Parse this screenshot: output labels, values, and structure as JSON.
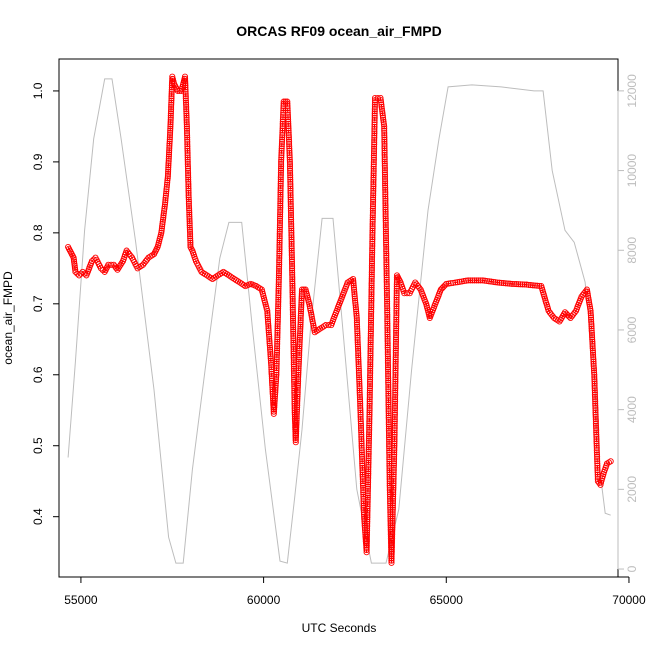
{
  "chart_data": {
    "type": "scatter",
    "title": "ORCAS RF09 ocean_air_FMPD",
    "xlabel": "UTC Seconds",
    "ylabel": "ocean_air_FMPD",
    "xlim": [
      54400,
      69700
    ],
    "ylim": [
      0.315,
      1.045
    ],
    "y2lim": [
      -200,
      12800
    ],
    "x_ticks": [
      55000,
      60000,
      65000,
      70000
    ],
    "y_ticks": [
      0.4,
      0.5,
      0.6,
      0.7,
      0.8,
      0.9,
      1.0
    ],
    "y2_ticks": [
      0,
      2000,
      4000,
      6000,
      8000,
      10000,
      12000
    ],
    "grid": false,
    "legend": "none",
    "series": [
      {
        "role": "primary",
        "color": "#ff0000",
        "marker": "open-circle",
        "points": [
          [
            54650,
            0.78
          ],
          [
            54700,
            0.775
          ],
          [
            54750,
            0.77
          ],
          [
            54800,
            0.765
          ],
          [
            54850,
            0.745
          ],
          [
            54950,
            0.74
          ],
          [
            55050,
            0.745
          ],
          [
            55150,
            0.74
          ],
          [
            55300,
            0.76
          ],
          [
            55400,
            0.765
          ],
          [
            55550,
            0.75
          ],
          [
            55650,
            0.745
          ],
          [
            55750,
            0.755
          ],
          [
            55900,
            0.755
          ],
          [
            56000,
            0.748
          ],
          [
            56150,
            0.76
          ],
          [
            56250,
            0.775
          ],
          [
            56400,
            0.765
          ],
          [
            56550,
            0.75
          ],
          [
            56700,
            0.755
          ],
          [
            56850,
            0.765
          ],
          [
            57000,
            0.77
          ],
          [
            57100,
            0.78
          ],
          [
            57200,
            0.8
          ],
          [
            57300,
            0.84
          ],
          [
            57380,
            0.88
          ],
          [
            57450,
            0.95
          ],
          [
            57500,
            1.02
          ],
          [
            57550,
            1.01
          ],
          [
            57650,
            1.0
          ],
          [
            57750,
            1.0
          ],
          [
            57850,
            1.02
          ],
          [
            57900,
            0.95
          ],
          [
            57950,
            0.85
          ],
          [
            58000,
            0.78
          ],
          [
            58050,
            0.775
          ],
          [
            58150,
            0.76
          ],
          [
            58300,
            0.745
          ],
          [
            58450,
            0.74
          ],
          [
            58600,
            0.735
          ],
          [
            58750,
            0.74
          ],
          [
            58900,
            0.745
          ],
          [
            59050,
            0.74
          ],
          [
            59200,
            0.735
          ],
          [
            59350,
            0.73
          ],
          [
            59500,
            0.725
          ],
          [
            59650,
            0.728
          ],
          [
            59800,
            0.725
          ],
          [
            59950,
            0.72
          ],
          [
            60100,
            0.69
          ],
          [
            60200,
            0.62
          ],
          [
            60280,
            0.545
          ],
          [
            60350,
            0.6
          ],
          [
            60420,
            0.74
          ],
          [
            60480,
            0.9
          ],
          [
            60550,
            0.985
          ],
          [
            60650,
            0.985
          ],
          [
            60720,
            0.9
          ],
          [
            60780,
            0.75
          ],
          [
            60850,
            0.55
          ],
          [
            60880,
            0.505
          ],
          [
            60950,
            0.6
          ],
          [
            61050,
            0.72
          ],
          [
            61150,
            0.72
          ],
          [
            61250,
            0.7
          ],
          [
            61400,
            0.66
          ],
          [
            61550,
            0.665
          ],
          [
            61700,
            0.67
          ],
          [
            61850,
            0.67
          ],
          [
            62000,
            0.69
          ],
          [
            62150,
            0.71
          ],
          [
            62300,
            0.73
          ],
          [
            62450,
            0.735
          ],
          [
            62550,
            0.68
          ],
          [
            62650,
            0.55
          ],
          [
            62750,
            0.4
          ],
          [
            62820,
            0.35
          ],
          [
            62900,
            0.55
          ],
          [
            62980,
            0.8
          ],
          [
            63050,
            0.99
          ],
          [
            63200,
            0.99
          ],
          [
            63300,
            0.95
          ],
          [
            63380,
            0.7
          ],
          [
            63450,
            0.45
          ],
          [
            63500,
            0.335
          ],
          [
            63580,
            0.5
          ],
          [
            63650,
            0.74
          ],
          [
            63750,
            0.73
          ],
          [
            63850,
            0.715
          ],
          [
            64000,
            0.715
          ],
          [
            64150,
            0.73
          ],
          [
            64300,
            0.72
          ],
          [
            64450,
            0.7
          ],
          [
            64550,
            0.68
          ],
          [
            64700,
            0.7
          ],
          [
            64850,
            0.72
          ],
          [
            65000,
            0.728
          ],
          [
            65250,
            0.73
          ],
          [
            65600,
            0.733
          ],
          [
            66000,
            0.733
          ],
          [
            66400,
            0.73
          ],
          [
            66800,
            0.728
          ],
          [
            67200,
            0.727
          ],
          [
            67600,
            0.725
          ],
          [
            67800,
            0.69
          ],
          [
            67950,
            0.68
          ],
          [
            68100,
            0.675
          ],
          [
            68250,
            0.688
          ],
          [
            68400,
            0.68
          ],
          [
            68550,
            0.69
          ],
          [
            68700,
            0.71
          ],
          [
            68850,
            0.72
          ],
          [
            68950,
            0.69
          ],
          [
            69050,
            0.6
          ],
          [
            69150,
            0.45
          ],
          [
            69220,
            0.445
          ],
          [
            69300,
            0.46
          ],
          [
            69400,
            0.475
          ],
          [
            69500,
            0.478
          ]
        ]
      },
      {
        "role": "secondary-axis",
        "color": "#bdbdbd",
        "marker": "line",
        "points": [
          [
            54650,
            2800
          ],
          [
            54850,
            5200
          ],
          [
            55100,
            8500
          ],
          [
            55350,
            10800
          ],
          [
            55650,
            12300
          ],
          [
            55850,
            12300
          ],
          [
            56100,
            10800
          ],
          [
            56500,
            8200
          ],
          [
            57000,
            4500
          ],
          [
            57400,
            800
          ],
          [
            57600,
            150
          ],
          [
            57800,
            150
          ],
          [
            58050,
            2500
          ],
          [
            58400,
            5000
          ],
          [
            58800,
            7800
          ],
          [
            59050,
            8700
          ],
          [
            59400,
            8700
          ],
          [
            59700,
            6000
          ],
          [
            60050,
            3000
          ],
          [
            60450,
            200
          ],
          [
            60650,
            150
          ],
          [
            60850,
            1800
          ],
          [
            61050,
            3500
          ],
          [
            61300,
            6200
          ],
          [
            61600,
            8800
          ],
          [
            61900,
            8800
          ],
          [
            62150,
            6200
          ],
          [
            62550,
            2000
          ],
          [
            62950,
            150
          ],
          [
            63350,
            150
          ],
          [
            63700,
            1500
          ],
          [
            64050,
            5000
          ],
          [
            64500,
            9000
          ],
          [
            64800,
            10800
          ],
          [
            65050,
            12100
          ],
          [
            65700,
            12150
          ],
          [
            66500,
            12100
          ],
          [
            67400,
            12000
          ],
          [
            67650,
            12000
          ],
          [
            67900,
            10000
          ],
          [
            68250,
            8500
          ],
          [
            68500,
            8200
          ],
          [
            68800,
            7200
          ],
          [
            69050,
            5000
          ],
          [
            69200,
            2500
          ],
          [
            69350,
            1400
          ],
          [
            69500,
            1350
          ]
        ]
      }
    ]
  }
}
